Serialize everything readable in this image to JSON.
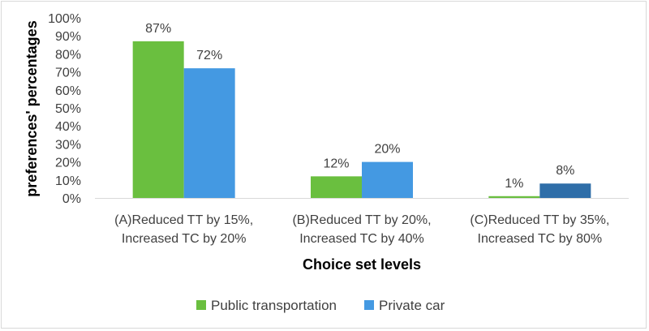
{
  "chart_data": {
    "type": "bar",
    "title": "",
    "xlabel": "Choice set levels",
    "ylabel": "preferences' percentages",
    "ylim": [
      0,
      100
    ],
    "yticks": [
      "0%",
      "10%",
      "20%",
      "30%",
      "40%",
      "50%",
      "60%",
      "70%",
      "80%",
      "90%",
      "100%"
    ],
    "categories": [
      {
        "line1": "(A)Reduced TT by 15%,",
        "line2": "Increased TC by 20%"
      },
      {
        "line1": "(B)Reduced TT by 20%,",
        "line2": "Increased TC by 40%"
      },
      {
        "line1": "(C)Reduced TT by 35%,",
        "line2": "Increased TC by 80%"
      }
    ],
    "series": [
      {
        "name": "Public transportation",
        "color": "#6abf3f",
        "values": [
          87,
          12,
          1
        ],
        "labels": [
          "87%",
          "12%",
          "1%"
        ]
      },
      {
        "name": "Private car",
        "color": "#4499e2",
        "values": [
          72,
          20,
          8
        ],
        "labels": [
          "72%",
          "20%",
          "8%"
        ],
        "point_colors": [
          "#4499e2",
          "#4499e2",
          "#2f6ea8"
        ]
      }
    ],
    "legend_position": "bottom",
    "grid": false
  }
}
